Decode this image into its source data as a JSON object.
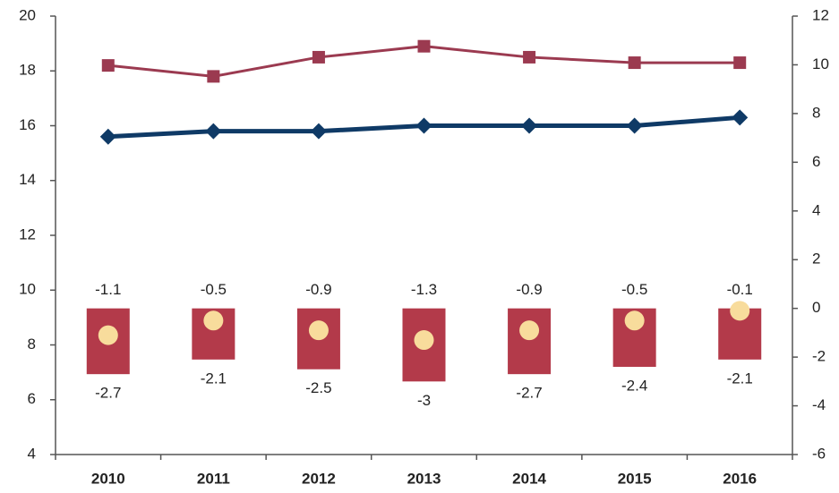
{
  "chart_data": {
    "type": "combo",
    "categories": [
      "2010",
      "2011",
      "2012",
      "2013",
      "2014",
      "2015",
      "2016"
    ],
    "ylim": [
      4,
      20
    ],
    "yticks": [
      4,
      6,
      8,
      10,
      12,
      14,
      16,
      18,
      20
    ],
    "y2lim": [
      -6,
      12
    ],
    "y2ticks": [
      -6,
      -4,
      -2,
      0,
      2,
      4,
      6,
      8,
      10,
      12
    ],
    "series": [
      {
        "type": "line",
        "marker": "square",
        "color": "#9b3a50",
        "values": [
          18.2,
          17.8,
          18.5,
          18.9,
          18.5,
          18.3,
          18.3
        ]
      },
      {
        "type": "line",
        "marker": "diamond",
        "color": "#0f3a66",
        "values": [
          15.6,
          15.8,
          15.8,
          16.0,
          16.0,
          16.0,
          16.3
        ]
      },
      {
        "type": "bar",
        "axis": "y2",
        "color": "#b33a4a",
        "values": [
          -2.7,
          -2.1,
          -2.5,
          -3.0,
          -2.7,
          -2.4,
          -2.1
        ]
      },
      {
        "type": "scatter",
        "axis": "y2",
        "color": "#f8dc9c",
        "values": [
          -1.1,
          -0.5,
          -0.9,
          -1.3,
          -0.9,
          -0.5,
          -0.1
        ]
      }
    ]
  }
}
